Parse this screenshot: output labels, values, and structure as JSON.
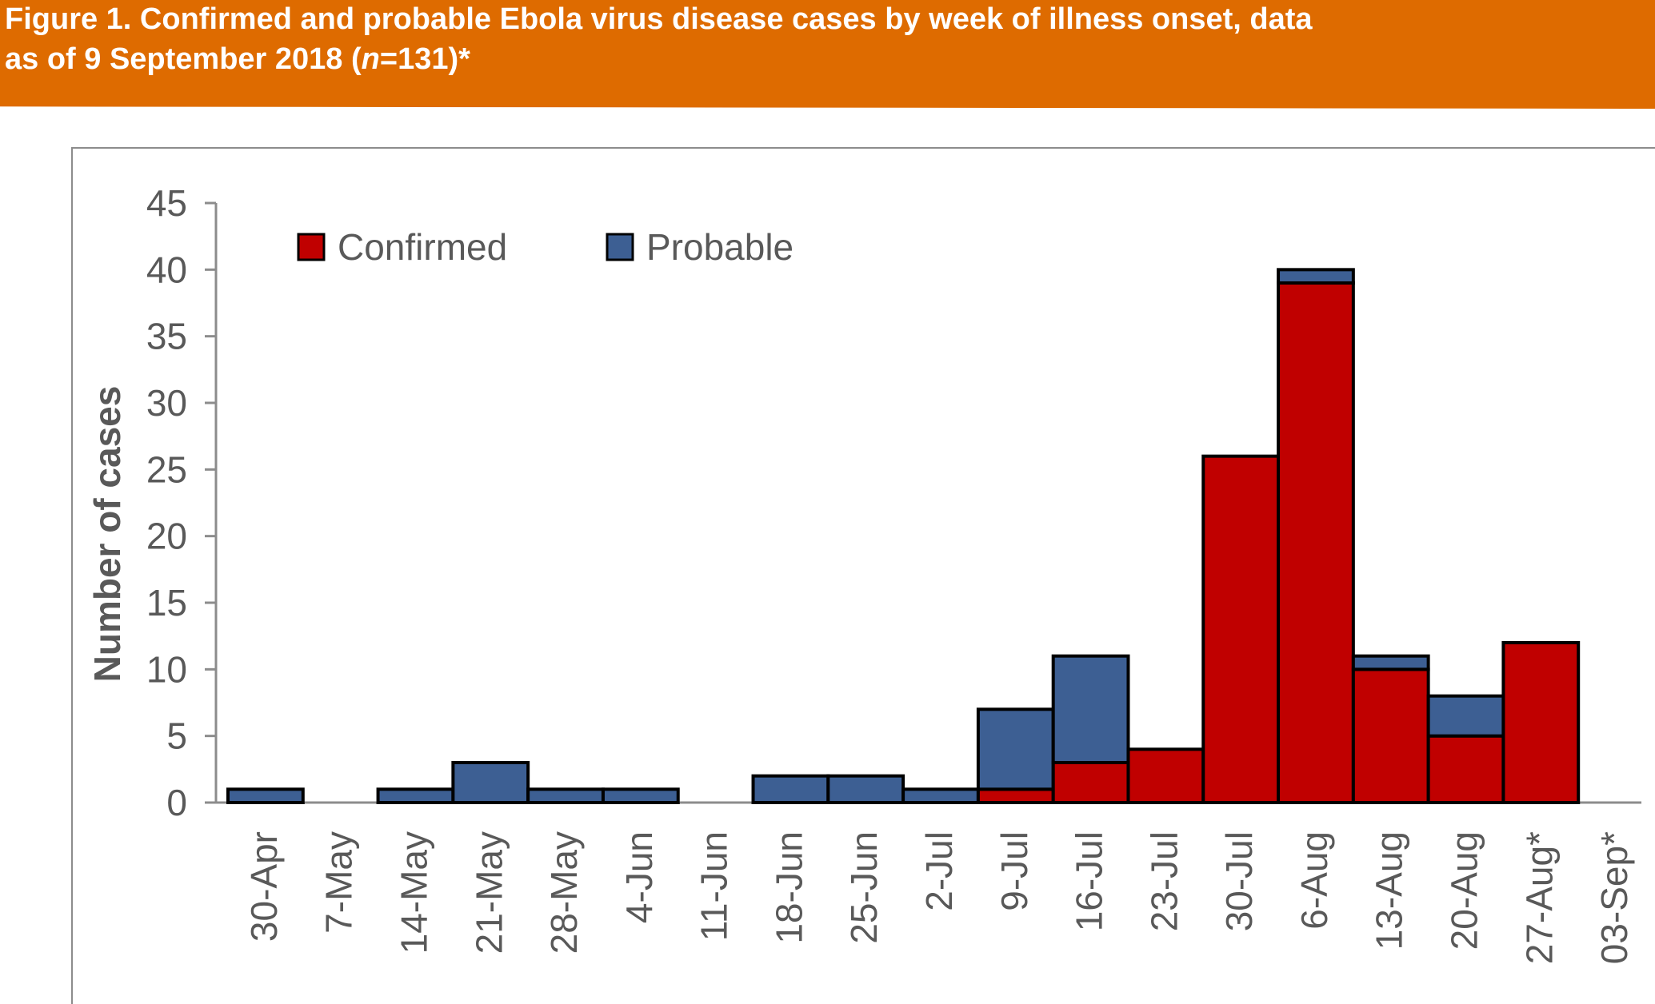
{
  "header": {
    "title_line1": "Figure 1. Confirmed and probable Ebola virus disease cases by week of illness onset, data",
    "title_line2_a": "as of 9 September 2018 (",
    "title_line2_n": "n",
    "title_line2_b": "=131)*"
  },
  "colors": {
    "header_bg": "#de6b00",
    "confirmed": "#c00000",
    "probable": "#3d5f93",
    "axis_text": "#595959"
  },
  "chart_data": {
    "type": "bar",
    "stacked": true,
    "title": "",
    "xlabel": "",
    "ylabel": "Number of cases",
    "ylim": [
      0,
      45
    ],
    "yticks": [
      0,
      5,
      10,
      15,
      20,
      25,
      30,
      35,
      40,
      45
    ],
    "legend_position": "top-left",
    "categories": [
      "30-Apr",
      "7-May",
      "14-May",
      "21-May",
      "28-May",
      "4-Jun",
      "11-Jun",
      "18-Jun",
      "25-Jun",
      "2-Jul",
      "9-Jul",
      "16-Jul",
      "23-Jul",
      "30-Jul",
      "6-Aug",
      "13-Aug",
      "20-Aug",
      "27-Aug*",
      "03-Sep*"
    ],
    "series": [
      {
        "name": "Confirmed",
        "color": "#c00000",
        "values": [
          0,
          0,
          0,
          0,
          0,
          0,
          0,
          0,
          0,
          0,
          1,
          3,
          4,
          26,
          39,
          10,
          5,
          12,
          0
        ]
      },
      {
        "name": "Probable",
        "color": "#3d5f93",
        "values": [
          1,
          0,
          1,
          3,
          1,
          1,
          0,
          2,
          2,
          1,
          6,
          8,
          0,
          0,
          1,
          1,
          3,
          0,
          0
        ]
      }
    ]
  }
}
